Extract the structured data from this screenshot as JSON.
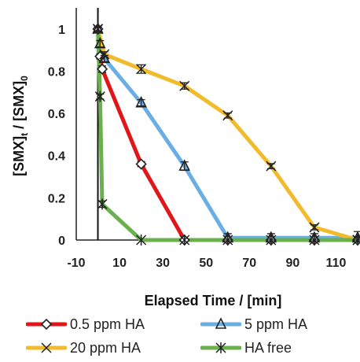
{
  "chart_data": {
    "type": "line",
    "title": "",
    "xlabel": "Elapsed Time / [min]",
    "ylabel_parts": [
      "[SMX]",
      "t",
      " / [SMX]",
      "0"
    ],
    "xlim": [
      -10,
      120
    ],
    "ylim": [
      0,
      1.1
    ],
    "x_ticks": [
      -10,
      10,
      30,
      50,
      70,
      90,
      110
    ],
    "y_ticks": [
      0,
      0.2,
      0.4,
      0.6,
      0.8,
      1
    ],
    "y_tick_labels": [
      "0",
      "0.2",
      "0.4",
      "0.6",
      "0.8",
      "1"
    ],
    "vertical_reference_x": 0,
    "grid": false,
    "legend_position": "bottom",
    "series": [
      {
        "name": "0.5 ppm HA",
        "color": "#e0161b",
        "marker": "diamond",
        "x": [
          0,
          1,
          2,
          20,
          40,
          60,
          80,
          100,
          120
        ],
        "y": [
          1,
          0.87,
          0.81,
          0.36,
          0.0,
          0.0,
          0.0,
          0.0,
          0.0
        ],
        "err": [
          0.012,
          0.012,
          0.015,
          0.012,
          0.0,
          0.0,
          0.0,
          0.0,
          0.0
        ]
      },
      {
        "name": "5 ppm HA",
        "color": "#6aaee4",
        "marker": "triangle",
        "x": [
          0,
          1,
          3,
          20,
          40,
          60,
          80,
          100,
          120
        ],
        "y": [
          1,
          0.93,
          0.86,
          0.65,
          0.35,
          0.01,
          0.01,
          0.01,
          0.01
        ],
        "err": [
          0.012,
          0.015,
          0.015,
          0.015,
          0.02,
          0.02,
          0.02,
          0.02,
          0.03
        ]
      },
      {
        "name": "20  ppm HA",
        "color": "#f2bb2c",
        "marker": "x",
        "x": [
          0,
          3,
          20,
          40,
          60,
          80,
          100,
          120
        ],
        "y": [
          1,
          0.88,
          0.81,
          0.73,
          0.59,
          0.35,
          0.06,
          0.0
        ],
        "err": [
          0.012,
          0.012,
          0.02,
          0.015,
          0.012,
          0.012,
          0.012,
          0.012
        ]
      },
      {
        "name": "HA free",
        "color": "#6ab04c",
        "marker": "asterisk",
        "x": [
          0,
          1,
          2,
          20,
          40,
          60,
          80,
          100,
          120
        ],
        "y": [
          1,
          0.68,
          0.17,
          0.0,
          0.0,
          0.0,
          0.0,
          0.0,
          0.0
        ],
        "err": [
          0.012,
          0.012,
          0.015,
          0.0,
          0.0,
          0.0,
          0.0,
          0.0,
          0.0
        ]
      }
    ]
  },
  "legend": {
    "items": [
      {
        "label": "0.5 ppm HA",
        "color": "#e0161b",
        "marker": "diamond"
      },
      {
        "label": "5 ppm HA",
        "color": "#6aaee4",
        "marker": "triangle"
      },
      {
        "label": "20  ppm HA",
        "color": "#f2bb2c",
        "marker": "x"
      },
      {
        "label": "HA free",
        "color": "#6ab04c",
        "marker": "asterisk"
      }
    ]
  }
}
